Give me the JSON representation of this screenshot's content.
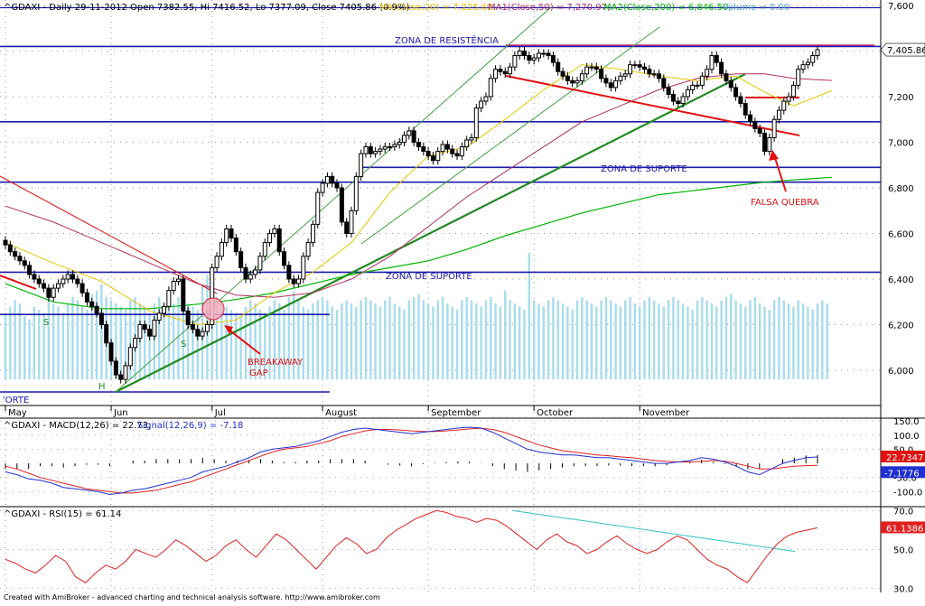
{
  "colors": {
    "background": "#ffffff",
    "candle": "#000000",
    "ma20": "#e6c600",
    "ma50": "#b03060",
    "ma200": "#00b400",
    "volume": "#a8dcec",
    "resistance": "#1c1caa",
    "trend_up": "#208a20",
    "trend_channel": "#40a040",
    "trend_down": "#e01010",
    "macd": "#2030d0",
    "signal": "#e02020",
    "rsi": "#e02020",
    "rsi_trend": "#30c0c0",
    "annotation": "#e01010",
    "zone_label": "#1c1caa",
    "last_price_badge": "#e01010",
    "macd_badge": "#e01010",
    "signal_badge": "#2030d0"
  },
  "header": {
    "symbol": "^GDAXI - Daily 29-11-2012 Open 7382.55, Hi 7416.52, Lo 7377.09, Close 7405.86 (0.9%)",
    "ma20": "MA(Close,20) = 7,225.62,",
    "ma50": "MA1(Close,50) = 7,270.97,",
    "ma200": "MA2(Close,200) = 6,846.50,",
    "volume": "Volume = 0.00"
  },
  "price_axis": [
    "7,600",
    "7,400",
    "7,200",
    "7,000",
    "6,800",
    "6,600",
    "6,400",
    "6,200",
    "6,000"
  ],
  "last_price": "7,405.86",
  "months": [
    "May",
    "Jun",
    "Jul",
    "August",
    "September",
    "October",
    "November"
  ],
  "annotations": {
    "zona_resistencia": "ZONA DE RESISTÊNCIA",
    "zona_suporte_upper": "ZONA DE SUPORTE",
    "zona_suporte_lower": "ZONA DE SUPORTE",
    "suporte_left": "'ORTE",
    "falsa_quebra": "FALSA QUEBRA",
    "breakaway_line1": "BREAKAWAY",
    "breakaway_line2": "GAP",
    "s1": "S",
    "h": "H",
    "s2": "S"
  },
  "macd": {
    "title": "^GDAXI - MACD(12,26) = 22.73,",
    "signal_title": "Signal(12,26,9) = -7.18",
    "axis": [
      "150.0",
      "100.0",
      "50.0",
      "-50.0",
      "-100.0"
    ],
    "macd_badge": "22.7347",
    "signal_badge": "-7.1776"
  },
  "rsi": {
    "title": "^GDAXI - RSI(15) = 61.14",
    "axis": [
      "70.0",
      "50.0",
      "30.0"
    ],
    "badge": "61.1386"
  },
  "footer": "Created with AmiBroker - advanced charting and technical analysis software. http://www.amibroker.com",
  "chart_data": [
    {
      "type": "candlestick",
      "title": "^GDAXI - Daily 29-11-2012 Open 7382.55, Hi 7416.52, Lo 7377.09, Close 7405.86 (0.9%)",
      "x_range": [
        "2012-05-01",
        "2012-11-29"
      ],
      "ylim": [
        5900,
        7650
      ],
      "y_ticks": [
        6000,
        6200,
        6400,
        6600,
        6800,
        7000,
        7200,
        7400,
        7600
      ],
      "month_labels": [
        "May",
        "Jun",
        "Jul",
        "August",
        "September",
        "October",
        "November"
      ],
      "last_close": 7405.86,
      "ohlc_recent_close_path": [
        6550,
        6520,
        6500,
        6480,
        6460,
        6420,
        6400,
        6380,
        6360,
        6320,
        6360,
        6380,
        6400,
        6420,
        6400,
        6380,
        6340,
        6300,
        6280,
        6250,
        6200,
        6120,
        6040,
        5980,
        5960,
        6020,
        6100,
        6140,
        6200,
        6180,
        6150,
        6220,
        6250,
        6280,
        6350,
        6390,
        6400,
        6260,
        6200,
        6180,
        6150,
        6170,
        6200,
        6450,
        6500,
        6560,
        6620,
        6580,
        6520,
        6450,
        6400,
        6420,
        6440,
        6500,
        6560,
        6600,
        6620,
        6520,
        6460,
        6400,
        6380,
        6400,
        6500,
        6560,
        6640,
        6780,
        6820,
        6850,
        6820,
        6800,
        6650,
        6600,
        6700,
        6850,
        6950,
        6980,
        6950,
        6960,
        6970,
        6980,
        6980,
        6990,
        7000,
        7030,
        7050,
        7000,
        6980,
        6960,
        6940,
        6920,
        6960,
        6990,
        6970,
        6950,
        6940,
        6980,
        7010,
        7020,
        7150,
        7180,
        7200,
        7280,
        7320,
        7310,
        7300,
        7330,
        7380,
        7400,
        7380,
        7360,
        7370,
        7390,
        7390,
        7380,
        7350,
        7310,
        7290,
        7270,
        7260,
        7270,
        7300,
        7330,
        7330,
        7320,
        7280,
        7260,
        7240,
        7270,
        7290,
        7300,
        7340,
        7340,
        7330,
        7320,
        7300,
        7300,
        7280,
        7240,
        7210,
        7180,
        7170,
        7200,
        7230,
        7250,
        7250,
        7290,
        7320,
        7380,
        7350,
        7300,
        7270,
        7240,
        7200,
        7170,
        7120,
        7090,
        7060,
        7040,
        6960,
        7020,
        7100,
        7140,
        7180,
        7200,
        7250,
        7320,
        7340,
        7350,
        7380,
        7406
      ],
      "series": [
        {
          "name": "MA(Close,20)",
          "values_key": "ma20",
          "last": 7225.62
        },
        {
          "name": "MA1(Close,50)",
          "values_key": "ma50",
          "last": 7270.97
        },
        {
          "name": "MA2(Close,200)",
          "values_key": "ma200",
          "last": 6846.5
        }
      ],
      "ma20": [
        [
          0,
          6560
        ],
        [
          10,
          6470
        ],
        [
          20,
          6390
        ],
        [
          30,
          6260
        ],
        [
          40,
          6200
        ],
        [
          48,
          6220
        ],
        [
          56,
          6340
        ],
        [
          64,
          6430
        ],
        [
          72,
          6560
        ],
        [
          80,
          6780
        ],
        [
          88,
          6940
        ],
        [
          96,
          6980
        ],
        [
          104,
          7100
        ],
        [
          112,
          7230
        ],
        [
          120,
          7340
        ],
        [
          128,
          7320
        ],
        [
          136,
          7290
        ],
        [
          144,
          7270
        ],
        [
          152,
          7290
        ],
        [
          158,
          7220
        ],
        [
          164,
          7160
        ],
        [
          172,
          7226
        ]
      ],
      "ma50": [
        [
          0,
          6720
        ],
        [
          10,
          6650
        ],
        [
          20,
          6560
        ],
        [
          30,
          6470
        ],
        [
          40,
          6380
        ],
        [
          48,
          6330
        ],
        [
          56,
          6320
        ],
        [
          64,
          6340
        ],
        [
          72,
          6400
        ],
        [
          80,
          6500
        ],
        [
          88,
          6630
        ],
        [
          96,
          6760
        ],
        [
          104,
          6870
        ],
        [
          112,
          6980
        ],
        [
          120,
          7090
        ],
        [
          128,
          7160
        ],
        [
          136,
          7230
        ],
        [
          144,
          7280
        ],
        [
          152,
          7300
        ],
        [
          158,
          7300
        ],
        [
          164,
          7280
        ],
        [
          172,
          7271
        ]
      ],
      "ma200": [
        [
          0,
          6380
        ],
        [
          10,
          6300
        ],
        [
          20,
          6270
        ],
        [
          30,
          6270
        ],
        [
          40,
          6290
        ],
        [
          48,
          6310
        ],
        [
          56,
          6340
        ],
        [
          64,
          6380
        ],
        [
          72,
          6420
        ],
        [
          80,
          6450
        ],
        [
          88,
          6480
        ],
        [
          96,
          6530
        ],
        [
          104,
          6590
        ],
        [
          112,
          6640
        ],
        [
          120,
          6690
        ],
        [
          128,
          6730
        ],
        [
          136,
          6770
        ],
        [
          144,
          6790
        ],
        [
          152,
          6810
        ],
        [
          158,
          6825
        ],
        [
          164,
          6835
        ],
        [
          172,
          6846.5
        ]
      ],
      "horizontal_levels": [
        7590,
        7420,
        7090,
        6890,
        6825,
        6430,
        6245
      ],
      "volume": [
        210,
        230,
        250,
        240,
        200,
        190,
        230,
        220,
        210,
        260,
        240,
        230,
        210,
        240,
        260,
        250,
        230,
        220,
        270,
        280,
        300,
        260,
        250,
        240,
        230,
        220,
        250,
        260,
        240,
        230,
        210,
        240,
        260,
        230,
        220,
        240,
        260,
        270,
        240,
        230,
        220,
        300,
        330,
        250,
        260,
        240,
        230,
        220,
        210,
        200,
        230,
        250,
        240,
        220,
        210,
        230,
        250,
        240,
        220,
        260,
        280,
        250,
        230,
        220,
        240,
        250,
        260,
        250,
        230,
        220,
        240,
        250,
        240,
        230,
        250,
        260,
        250,
        240,
        230,
        250,
        260,
        240,
        230,
        220,
        250,
        260,
        270,
        250,
        240,
        230,
        250,
        260,
        240,
        230,
        220,
        250,
        260,
        250,
        240,
        230,
        250,
        260,
        240,
        230,
        280,
        250,
        240,
        230,
        220,
        400,
        250,
        240,
        230,
        250,
        260,
        250,
        240,
        230,
        220,
        250,
        260,
        250,
        240,
        230,
        250,
        260,
        250,
        240,
        230,
        250,
        260,
        240,
        230,
        250,
        260,
        250,
        240,
        230,
        250,
        260,
        250,
        240,
        230,
        220,
        250,
        260,
        250,
        240,
        230,
        250,
        260,
        270,
        250,
        240,
        230,
        250,
        260,
        240,
        230,
        220,
        250,
        260,
        250,
        240,
        230,
        250,
        240,
        230,
        220,
        240,
        250,
        240
      ]
    },
    {
      "type": "line",
      "title": "^GDAXI - MACD(12,26) = 22.73, Signal(12,26,9) = -7.18",
      "ylim": [
        -150,
        160
      ],
      "y_ticks": [
        150,
        100,
        50,
        -50,
        -100
      ],
      "series": [
        {
          "name": "MACD(12,26)",
          "values": [
            -30,
            -40,
            -55,
            -60,
            -70,
            -85,
            -90,
            -95,
            -100,
            -110,
            -105,
            -95,
            -90,
            -80,
            -70,
            -60,
            -50,
            -30,
            -20,
            -10,
            5,
            20,
            40,
            50,
            55,
            60,
            70,
            80,
            95,
            110,
            120,
            125,
            120,
            115,
            110,
            105,
            110,
            115,
            120,
            125,
            128,
            125,
            110,
            90,
            70,
            50,
            40,
            35,
            30,
            30,
            25,
            20,
            20,
            15,
            10,
            5,
            0,
            0,
            5,
            10,
            20,
            15,
            5,
            -10,
            -30,
            -40,
            -20,
            0,
            10,
            20,
            22.73
          ]
        },
        {
          "name": "Signal(12,26,9)",
          "values": [
            -10,
            -20,
            -35,
            -50,
            -60,
            -70,
            -80,
            -90,
            -95,
            -100,
            -105,
            -105,
            -100,
            -95,
            -85,
            -75,
            -65,
            -50,
            -35,
            -20,
            -5,
            10,
            25,
            40,
            50,
            55,
            60,
            70,
            80,
            95,
            105,
            115,
            120,
            120,
            118,
            115,
            113,
            113,
            115,
            118,
            122,
            124,
            120,
            110,
            95,
            80,
            65,
            55,
            45,
            40,
            35,
            30,
            27,
            23,
            20,
            15,
            10,
            7,
            5,
            5,
            7,
            10,
            8,
            0,
            -10,
            -20,
            -20,
            -15,
            -10,
            -8,
            -7.18
          ]
        }
      ],
      "last_macd": 22.7347,
      "last_signal": -7.1776
    },
    {
      "type": "line",
      "title": "^GDAXI - RSI(15) = 61.14",
      "ylim": [
        28,
        72
      ],
      "y_ticks": [
        70,
        50,
        30
      ],
      "series": [
        {
          "name": "RSI(15)",
          "values": [
            45,
            43,
            40,
            38,
            42,
            47,
            44,
            36,
            33,
            38,
            42,
            40,
            44,
            50,
            48,
            46,
            50,
            55,
            52,
            48,
            44,
            47,
            52,
            55,
            50,
            46,
            52,
            58,
            55,
            50,
            45,
            40,
            46,
            52,
            56,
            53,
            48,
            50,
            56,
            60,
            63,
            66,
            68,
            70,
            69,
            67,
            66,
            64,
            66,
            65,
            62,
            58,
            54,
            50,
            55,
            58,
            54,
            52,
            48,
            50,
            54,
            57,
            53,
            50,
            48,
            50,
            54,
            57,
            55,
            50,
            45,
            42,
            40,
            36,
            33,
            40,
            47,
            53,
            57,
            59,
            60,
            61.14
          ]
        }
      ],
      "last": 61.1386
    }
  ]
}
